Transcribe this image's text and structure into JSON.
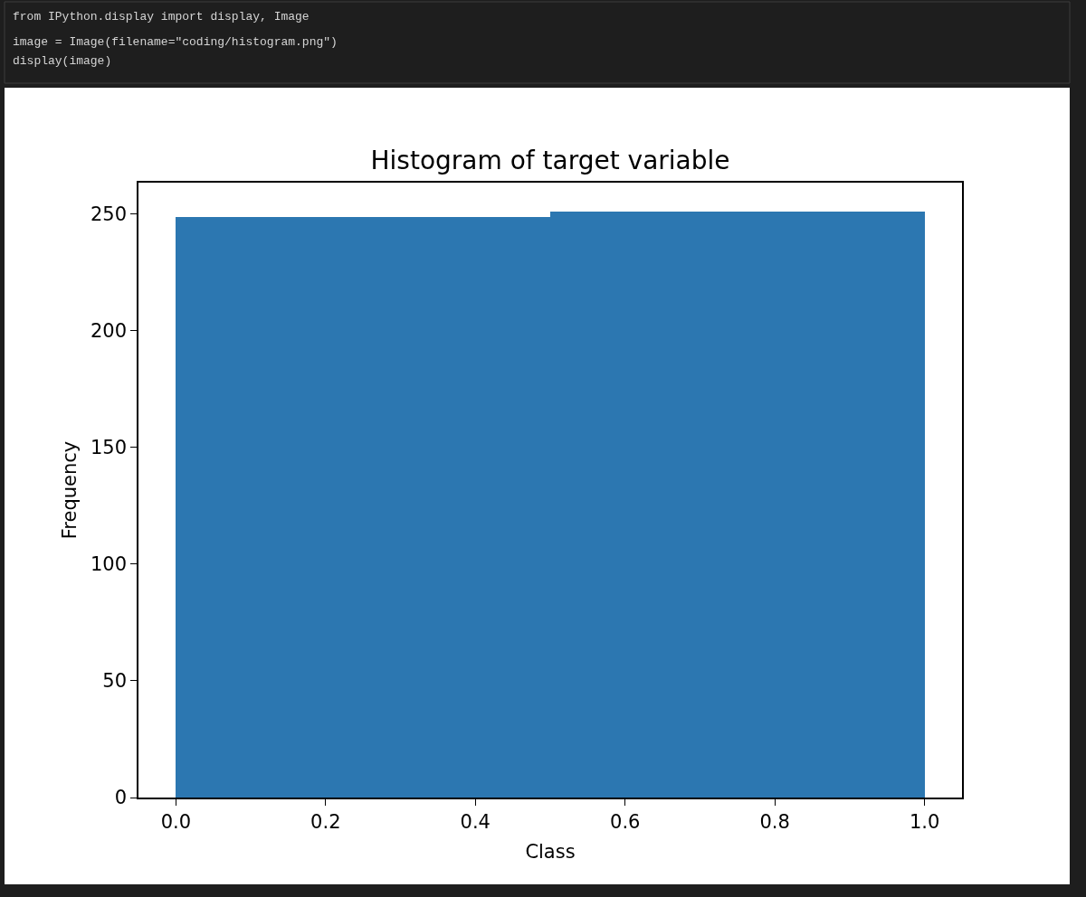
{
  "chart_data": {
    "type": "histogram",
    "title": "Histogram of target variable",
    "xlabel": "Class",
    "ylabel": "Frequency",
    "bins": [
      0.0,
      0.5,
      1.0
    ],
    "values": [
      249,
      251
    ],
    "color": "#2c77b1",
    "xlim": [
      -0.05,
      1.05
    ],
    "xticks": [
      {
        "value": 0,
        "label": "0.0"
      },
      0.2,
      0.4,
      0.6,
      0.8,
      {
        "value": 1,
        "label": "1.0"
      }
    ],
    "ylim": [
      0,
      263.55
    ],
    "yticks": [
      0,
      50,
      100,
      150,
      200,
      250
    ],
    "annotations": [
      "from IPython.display import display, Image",
      "image = Image(filename=\"coding/histogram.png\")",
      "display(image)"
    ]
  }
}
